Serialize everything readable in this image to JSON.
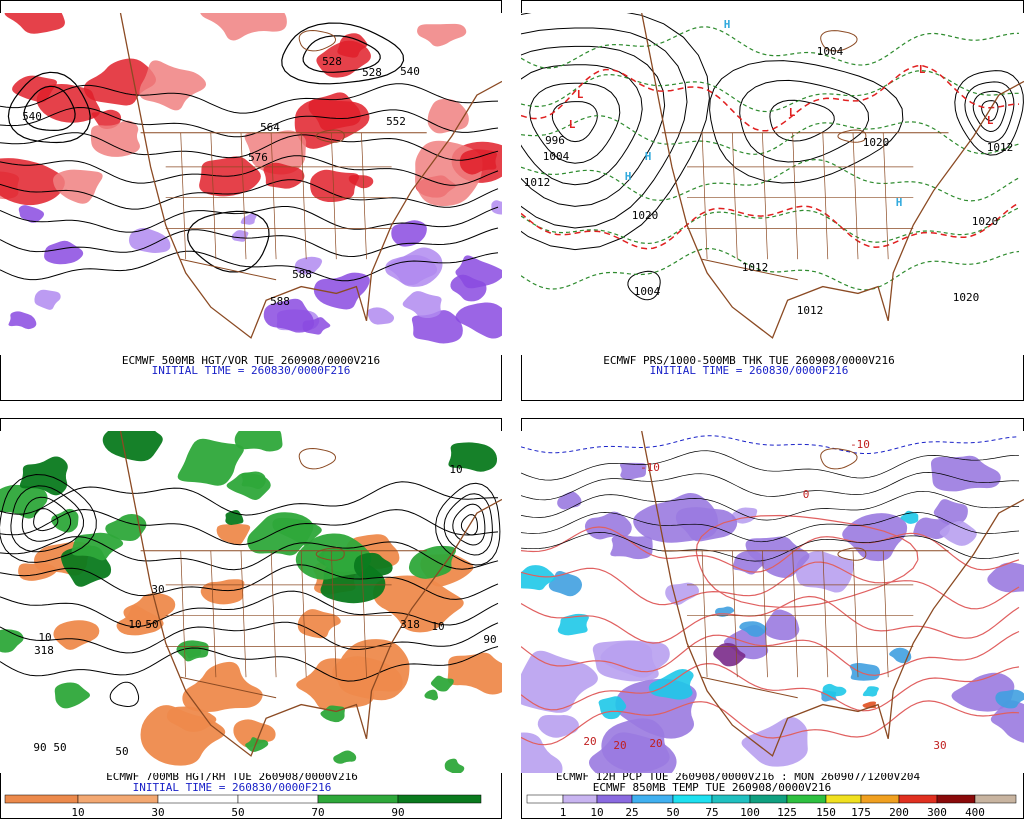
{
  "panels": [
    {
      "caption": "ECMWF 500MB HGT/VOR TUE 260908/0000V216",
      "initial_time": "INITIAL TIME = 260830/0000F216",
      "labels": [
        "540",
        "528",
        "528",
        "540",
        "552",
        "564",
        "576",
        "588",
        "588"
      ],
      "highs": [],
      "lows": []
    },
    {
      "caption": "ECMWF PRS/1000-500MB THK TUE 260908/0000V216",
      "initial_time": "INITIAL TIME = 260830/0000F216",
      "labels": [
        "996",
        "1004",
        "1012",
        "1020",
        "1004",
        "1012",
        "1020",
        "1020",
        "1012",
        "1004",
        "1020",
        "1012"
      ],
      "highs": [
        "H",
        "H",
        "H",
        "H"
      ],
      "lows": [
        "L",
        "L",
        "L",
        "L",
        "L"
      ]
    },
    {
      "caption": "ECMWF 700MB HGT/RH TUE 260908/0000V216",
      "initial_time": "INITIAL TIME = 260830/0000F216",
      "labels": [
        "10",
        "318",
        "10",
        "50",
        "10",
        "318",
        "10",
        "90",
        "50",
        "90",
        "50",
        "30"
      ],
      "highs": [],
      "lows": [],
      "colorbar": [
        "10",
        "30",
        "50",
        "70",
        "90"
      ]
    },
    {
      "caption": "ECMWF 12H PCP TUE 260908/0000V216 : MON 260907/1200V204",
      "initial_time": "ECMWF 850MB TEMP TUE 260908/0000V216",
      "labels": [
        "-10",
        "-10",
        "20",
        "20",
        "20",
        "30",
        "0"
      ],
      "highs": [],
      "lows": [],
      "colorbar": [
        "1",
        "10",
        "25",
        "50",
        "75",
        "100",
        "125",
        "150",
        "175",
        "200",
        "300",
        "400"
      ]
    }
  ]
}
